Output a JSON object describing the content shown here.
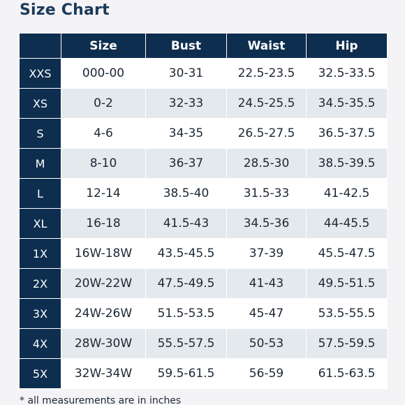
{
  "title": "Size Chart",
  "table": {
    "headers": [
      "",
      "Size",
      "Bust",
      "Waist",
      "Hip"
    ],
    "rows": [
      [
        "XXS",
        "000-00",
        "30-31",
        "22.5-23.5",
        "32.5-33.5"
      ],
      [
        "XS",
        "0-2",
        "32-33",
        "24.5-25.5",
        "34.5-35.5"
      ],
      [
        "S",
        "4-6",
        "34-35",
        "26.5-27.5",
        "36.5-37.5"
      ],
      [
        "M",
        "8-10",
        "36-37",
        "28.5-30",
        "38.5-39.5"
      ],
      [
        "L",
        "12-14",
        "38.5-40",
        "31.5-33",
        "41-42.5"
      ],
      [
        "XL",
        "16-18",
        "41.5-43",
        "34.5-36",
        "44-45.5"
      ],
      [
        "1X",
        "16W-18W",
        "43.5-45.5",
        "37-39",
        "45.5-47.5"
      ],
      [
        "2X",
        "20W-22W",
        "47.5-49.5",
        "41-43",
        "49.5-51.5"
      ],
      [
        "3X",
        "24W-26W",
        "51.5-53.5",
        "45-47",
        "53.5-55.5"
      ],
      [
        "4X",
        "28W-30W",
        "55.5-57.5",
        "50-53",
        "57.5-59.5"
      ],
      [
        "5X",
        "32W-34W",
        "59.5-61.5",
        "56-59",
        "61.5-63.5"
      ]
    ]
  },
  "footnote": "* all measurements are in inches",
  "colors": {
    "header_bg": "#0e2e4f",
    "title": "#1a3a5a",
    "row_alt": "#e4e9ee"
  }
}
